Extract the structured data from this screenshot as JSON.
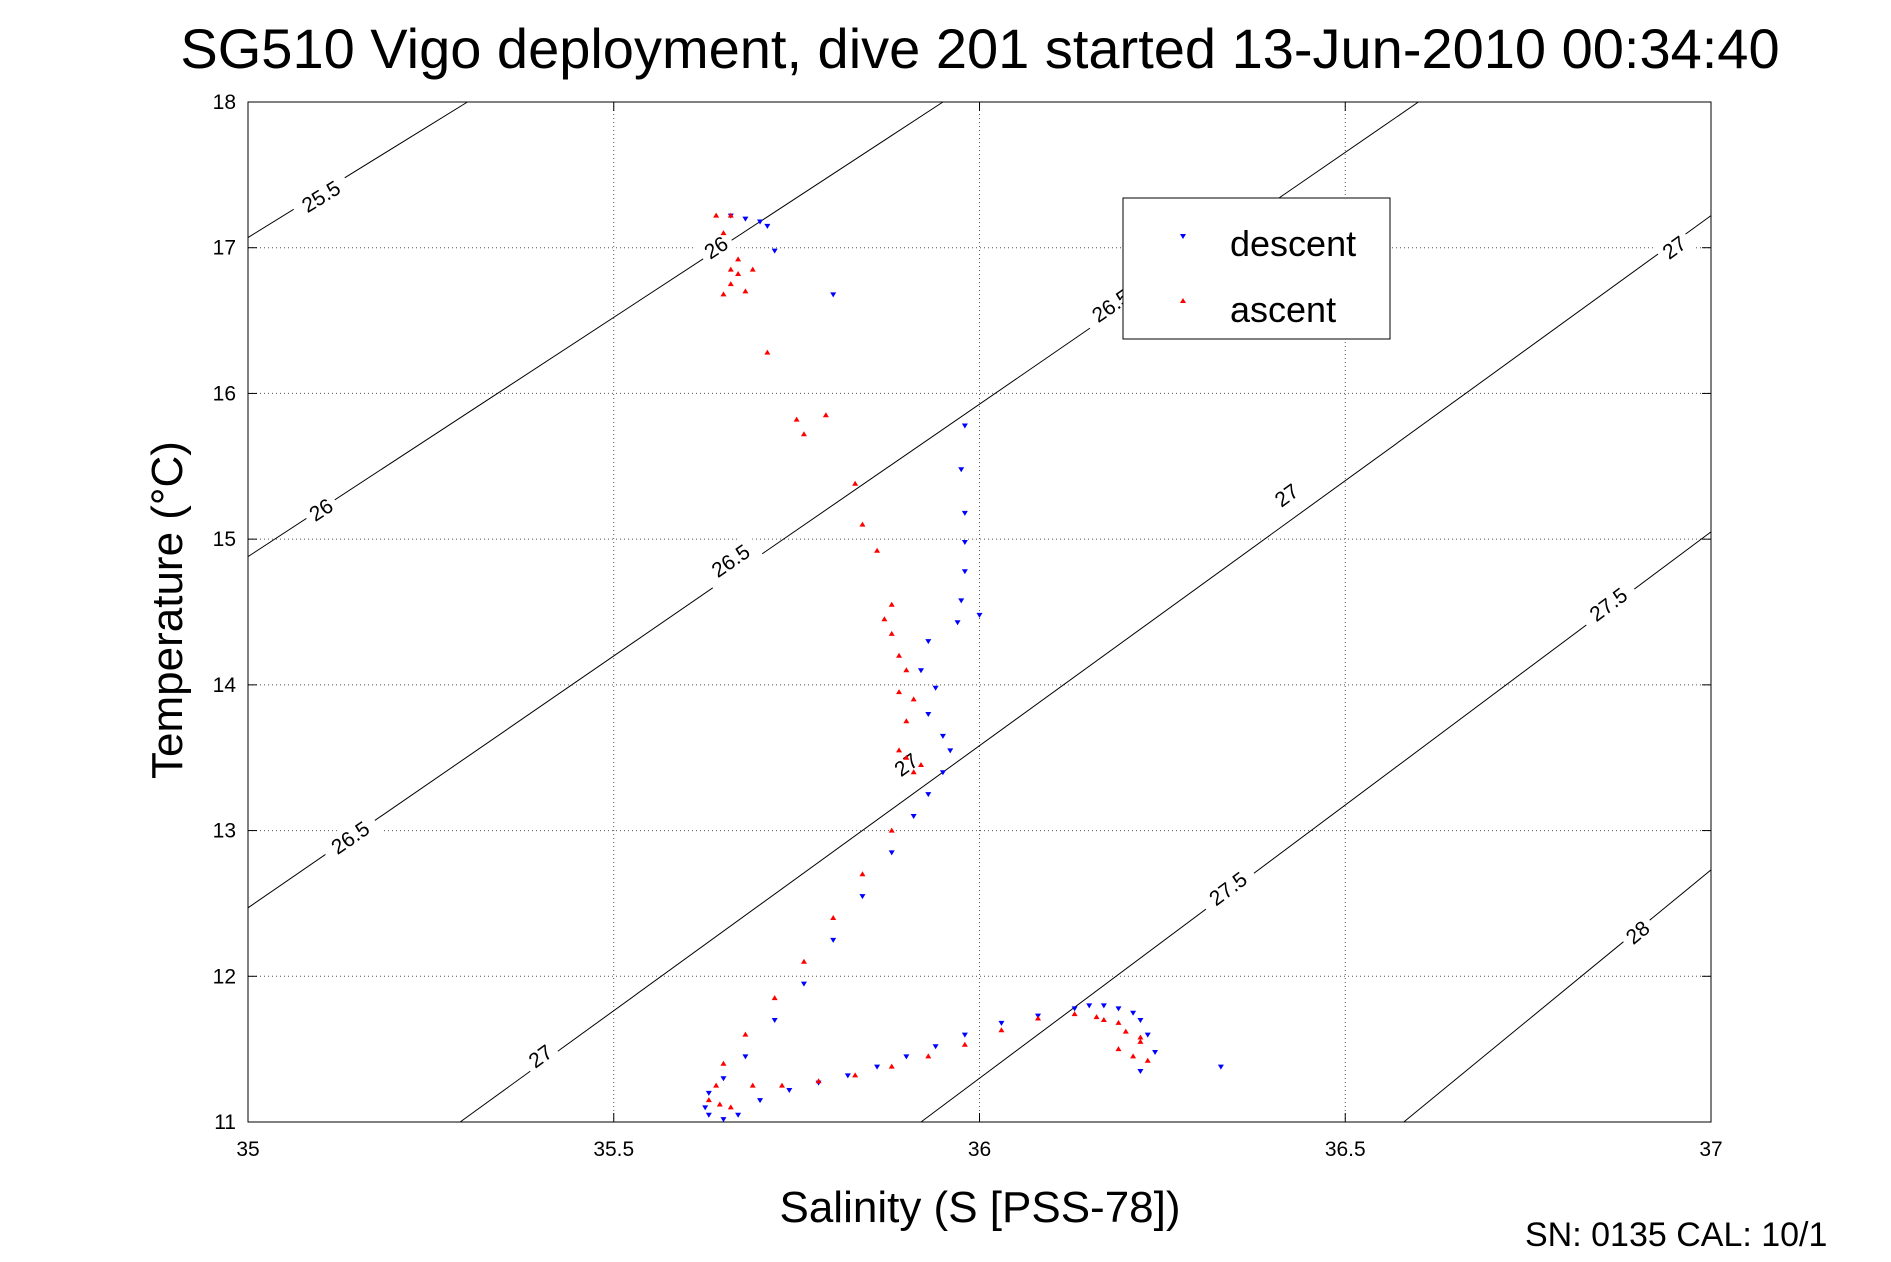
{
  "chart_data": {
    "type": "scatter",
    "title": "SG510 Vigo deployment, dive 201 started 13-Jun-2010 00:34:40",
    "xlabel": "Salinity (S [PSS-78])",
    "ylabel": "Temperature (°C)",
    "xlim": [
      35,
      37
    ],
    "ylim": [
      11,
      18
    ],
    "x_ticks": [
      35,
      35.5,
      36,
      36.5,
      37
    ],
    "x_tick_labels": [
      "35",
      "35.5",
      "36",
      "36.5",
      "37"
    ],
    "y_ticks": [
      11,
      12,
      13,
      14,
      15,
      16,
      17,
      18
    ],
    "y_tick_labels": [
      "11",
      "12",
      "13",
      "14",
      "15",
      "16",
      "17",
      "18"
    ],
    "grid": true,
    "legend_position": "top-right",
    "density_contours": [
      {
        "sigma": 25.5,
        "start": [
          35,
          17.07
        ],
        "end": [
          35.3,
          18.0
        ],
        "labels": [
          [
            35.1,
            17.35
          ]
        ]
      },
      {
        "sigma": 26,
        "start": [
          35,
          14.88
        ],
        "end": [
          35.95,
          18.0
        ],
        "labels": [
          [
            35.1,
            15.2
          ],
          [
            35.64,
            17.0
          ]
        ]
      },
      {
        "sigma": 26.5,
        "start": [
          35,
          12.47
        ],
        "end": [
          36.6,
          18.0
        ],
        "labels": [
          [
            35.14,
            12.95
          ],
          [
            35.66,
            14.85
          ],
          [
            36.18,
            16.6
          ]
        ]
      },
      {
        "sigma": 27,
        "start": [
          35.29,
          11.0
        ],
        "end": [
          37,
          17.22
        ],
        "labels": [
          [
            35.4,
            11.45
          ],
          [
            35.9,
            13.45
          ],
          [
            36.42,
            15.3
          ],
          [
            36.95,
            17.0
          ]
        ]
      },
      {
        "sigma": 27.5,
        "start": [
          35.92,
          11.0
        ],
        "end": [
          37,
          15.05
        ],
        "labels": [
          [
            36.34,
            12.6
          ],
          [
            36.86,
            14.55
          ]
        ]
      },
      {
        "sigma": 28,
        "start": [
          36.58,
          11.0
        ],
        "end": [
          37,
          12.73
        ],
        "labels": [
          [
            36.9,
            12.3
          ]
        ]
      }
    ],
    "series": [
      {
        "name": "descent",
        "color": "#0000ff",
        "marker": "triangle-down",
        "x": [
          35.66,
          35.68,
          35.7,
          35.72,
          35.8,
          35.71,
          35.98,
          35.975,
          35.98,
          35.98,
          35.98,
          35.975,
          36.0,
          35.97,
          35.93,
          35.92,
          35.94,
          35.93,
          35.95,
          35.96,
          35.95,
          35.93,
          35.91,
          35.88,
          35.84,
          35.8,
          35.76,
          35.72,
          35.68,
          35.65,
          35.63,
          35.625,
          35.63,
          35.65,
          35.67,
          35.7,
          35.74,
          35.78,
          35.82,
          35.86,
          35.9,
          35.94,
          35.98,
          36.03,
          36.08,
          36.13,
          36.15,
          36.17,
          36.19,
          36.21,
          36.22,
          36.23,
          36.22,
          36.24,
          36.33
        ],
        "y": [
          17.22,
          17.2,
          17.18,
          16.98,
          16.68,
          17.15,
          15.78,
          15.48,
          15.18,
          14.98,
          14.78,
          14.58,
          14.48,
          14.43,
          14.3,
          14.1,
          13.98,
          13.8,
          13.65,
          13.55,
          13.4,
          13.25,
          13.1,
          12.85,
          12.55,
          12.25,
          11.95,
          11.7,
          11.45,
          11.3,
          11.2,
          11.1,
          11.05,
          11.02,
          11.05,
          11.15,
          11.22,
          11.27,
          11.32,
          11.38,
          11.45,
          11.52,
          11.6,
          11.68,
          11.73,
          11.78,
          11.8,
          11.8,
          11.78,
          11.75,
          11.7,
          11.6,
          11.35,
          11.48,
          11.38
        ]
      },
      {
        "name": "ascent",
        "color": "#ff0000",
        "marker": "triangle-up",
        "x": [
          35.64,
          35.66,
          35.65,
          35.67,
          35.66,
          35.68,
          35.67,
          35.65,
          35.66,
          35.69,
          35.71,
          35.75,
          35.76,
          35.79,
          35.83,
          35.84,
          35.86,
          35.88,
          35.87,
          35.89,
          35.88,
          35.9,
          35.89,
          35.91,
          35.9,
          35.89,
          35.9,
          35.92,
          35.91,
          35.88,
          35.84,
          35.8,
          35.76,
          35.72,
          35.68,
          35.65,
          35.64,
          35.63,
          35.645,
          35.66,
          35.69,
          35.73,
          35.78,
          35.83,
          35.88,
          35.93,
          35.98,
          36.03,
          36.08,
          36.13,
          36.16,
          36.17,
          36.19,
          36.2,
          36.22,
          36.21,
          36.19,
          36.23,
          36.22
        ],
        "y": [
          17.22,
          17.22,
          17.1,
          16.92,
          16.85,
          16.7,
          16.82,
          16.68,
          16.75,
          16.85,
          16.28,
          15.82,
          15.72,
          15.85,
          15.38,
          15.1,
          14.92,
          14.55,
          14.45,
          14.2,
          14.35,
          14.1,
          13.95,
          13.9,
          13.75,
          13.55,
          13.5,
          13.45,
          13.4,
          13.0,
          12.7,
          12.4,
          12.1,
          11.85,
          11.6,
          11.4,
          11.25,
          11.15,
          11.12,
          11.1,
          11.25,
          11.25,
          11.28,
          11.32,
          11.38,
          11.45,
          11.53,
          11.63,
          11.71,
          11.74,
          11.72,
          11.7,
          11.68,
          11.62,
          11.58,
          11.45,
          11.5,
          11.42,
          11.55
        ]
      }
    ]
  },
  "footer": {
    "text": "SN: 0135  CAL: 10/1"
  }
}
